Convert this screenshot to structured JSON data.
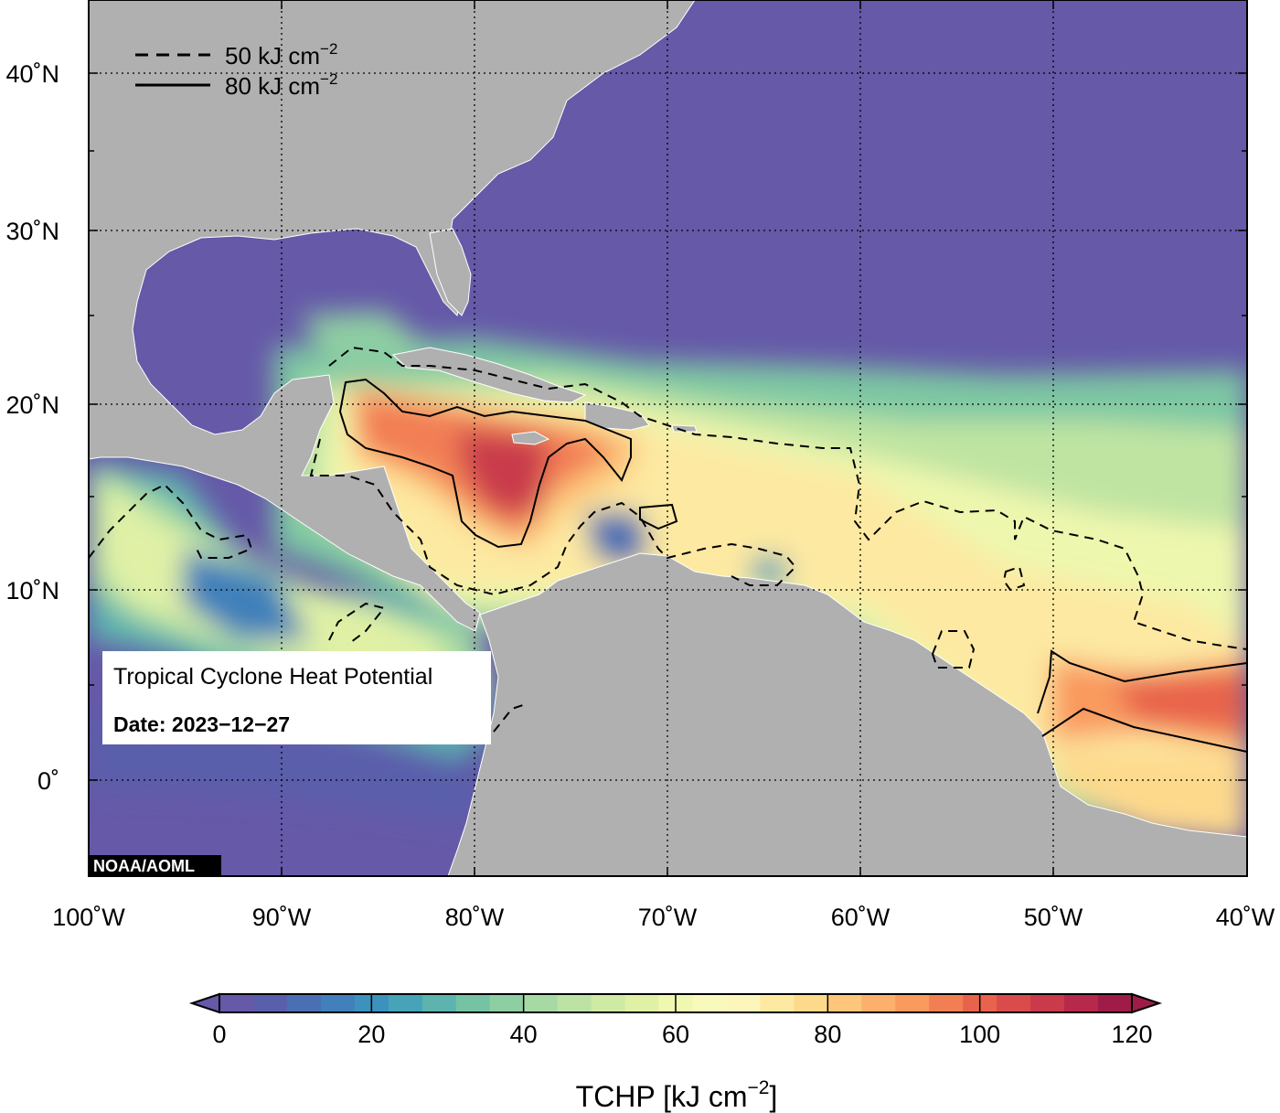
{
  "map": {
    "lat_labels": [
      "40˚N",
      "30˚N",
      "20˚N",
      "10˚N",
      "0˚"
    ],
    "lon_labels": [
      "100˚W",
      "90˚W",
      "80˚W",
      "70˚W",
      "60˚W",
      "50˚W",
      "40˚W"
    ],
    "legend": {
      "dashed_value": "50 kJ cm",
      "solid_value": "80 kJ cm",
      "exponent": "−2"
    },
    "info_box": {
      "title": "Tropical Cyclone Heat Potential",
      "date": "Date: 2023−12−27"
    },
    "credit": "NOAA/AOML",
    "colors": {
      "ocean_cool": "#6559a8",
      "land": "#b0b0b0",
      "warm_core": "#d53e4f",
      "hot_core": "#c41e4a"
    }
  },
  "colorbar": {
    "tick_labels": [
      "0",
      "20",
      "40",
      "60",
      "80",
      "100",
      "120"
    ],
    "label": "TCHP [kJ cm",
    "label_exponent": "−2",
    "label_close": "]",
    "colors": [
      "#6559a8",
      "#5a5fab",
      "#4a6fb3",
      "#4180ba",
      "#3d92bd",
      "#46a3b8",
      "#5db4ae",
      "#75c2a5",
      "#8ecea3",
      "#a6d9a3",
      "#bce2a4",
      "#cfeaa4",
      "#e0f1a6",
      "#eff7b0",
      "#f8fabb",
      "#fcf6bb",
      "#fde9a2",
      "#fdd98c",
      "#fdc67a",
      "#fcb06c",
      "#f99a5f",
      "#f27e54",
      "#e8634c",
      "#d94c4b",
      "#c93a4b",
      "#b7294a",
      "#a01c48"
    ]
  }
}
